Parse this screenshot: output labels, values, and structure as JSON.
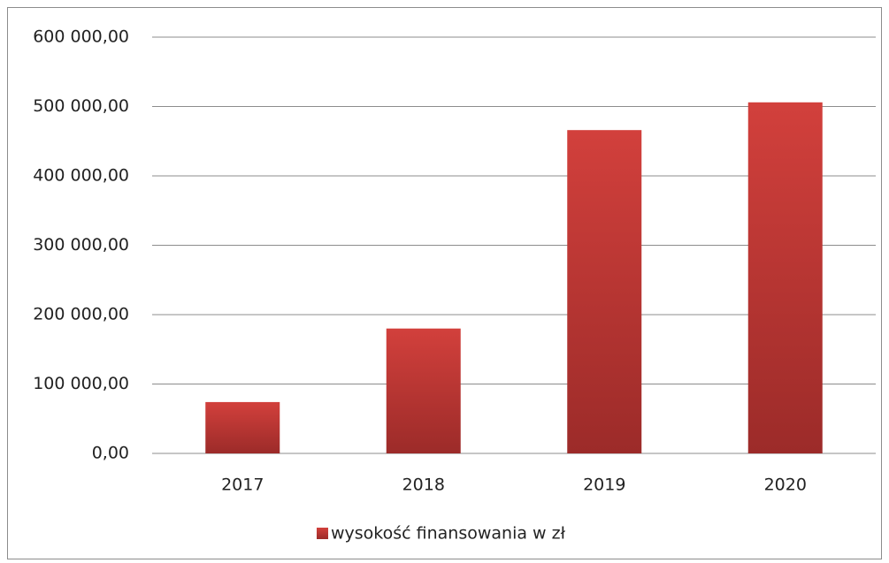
{
  "chart_data": {
    "type": "bar",
    "categories": [
      "2017",
      "2018",
      "2019",
      "2020"
    ],
    "series": [
      {
        "name": "wysokość finansowania w zł",
        "color": "#d2403c",
        "values": [
          74000,
          180000,
          466000,
          506000
        ]
      }
    ],
    "ylim": [
      0,
      600000
    ],
    "yticks": [
      {
        "value": 0,
        "label": "0,00"
      },
      {
        "value": 100000,
        "label": "100 000,00"
      },
      {
        "value": 200000,
        "label": "200 000,00"
      },
      {
        "value": 300000,
        "label": "300 000,00"
      },
      {
        "value": 400000,
        "label": "400 000,00"
      },
      {
        "value": 500000,
        "label": "500 000,00"
      },
      {
        "value": 600000,
        "label": "600 000,00"
      }
    ],
    "grid": true,
    "legend": "bottom"
  }
}
